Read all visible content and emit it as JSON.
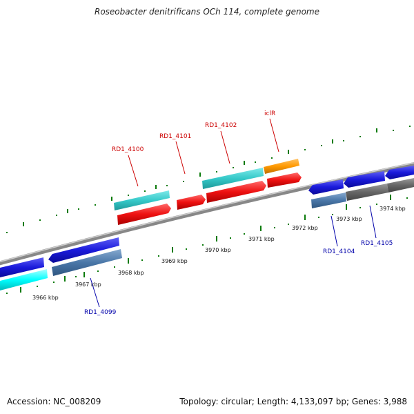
{
  "title": "Roseobacter denitrificans OCh 114, complete genome",
  "footer": {
    "accession": "Accession: NC_008209",
    "info": "Topology: circular; Length: 4,133,097 bp; Genes: 3,988"
  },
  "kbp_labels": [
    "3966 kbp",
    "3967 kbp",
    "3968 kbp",
    "3969 kbp",
    "3970 kbp",
    "3971 kbp",
    "3972 kbp",
    "3973 kbp",
    "3974 kbp"
  ],
  "gene_labels_top": [
    "RD1_4100",
    "RD1_4101",
    "RD1_4102",
    "iclR"
  ],
  "gene_labels_bottom": [
    "RD1_4099",
    "RD1_4104",
    "RD1_4105"
  ],
  "colors": {
    "cyan": "#36c9c9",
    "red": "#ee1111",
    "orange": "#ff9900",
    "blue": "#1a1adb",
    "steel": "#4a77a8",
    "gray": "#666666",
    "bright_cyan": "#00ffff",
    "tick": "#0a7a0a"
  }
}
